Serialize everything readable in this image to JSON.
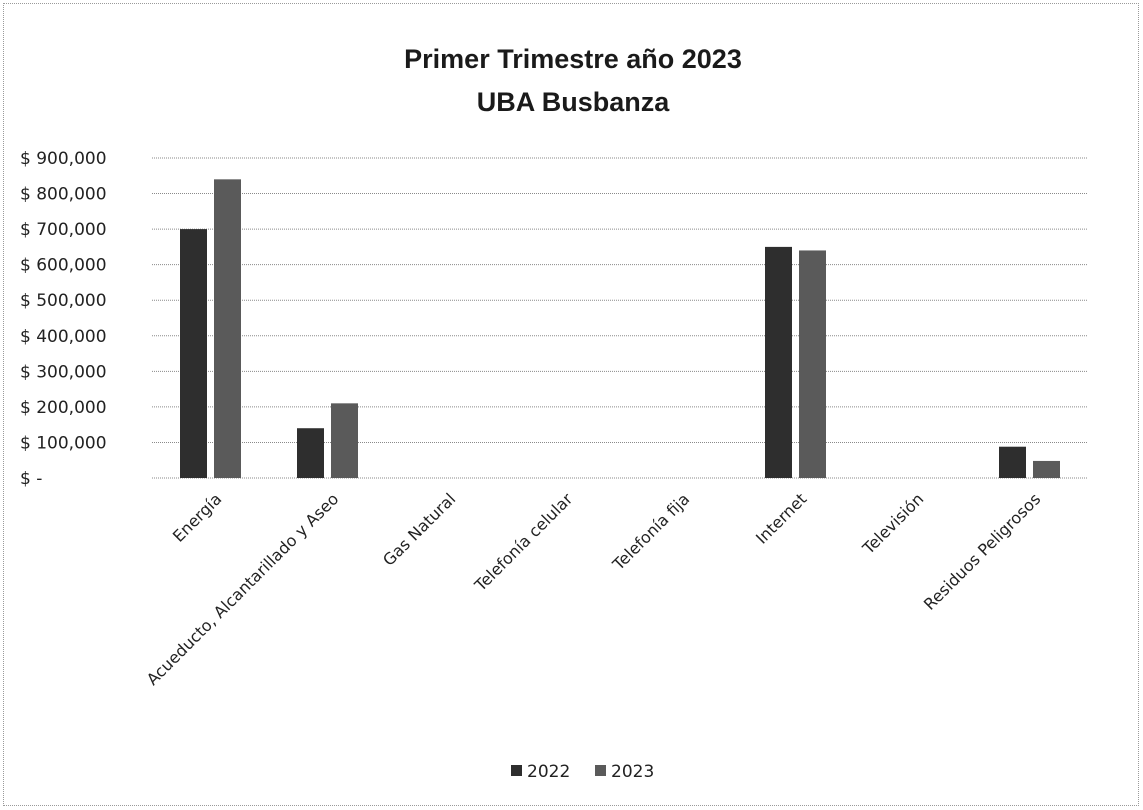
{
  "chart_data": {
    "type": "bar",
    "title": [
      "Primer Trimestre año 2023",
      "UBA Busbanza"
    ],
    "categories": [
      "Energía",
      "Acueducto, Alcantarillado y Aseo",
      "Gas Natural",
      "Telefonía celular",
      "Telefonía fija",
      "Internet",
      "Televisión",
      "Residuos Peligrosos"
    ],
    "series": [
      {
        "name": "2022",
        "color": "#2e2e2e",
        "values": [
          700000,
          140000,
          0,
          0,
          0,
          650000,
          0,
          88000
        ]
      },
      {
        "name": "2023",
        "color": "#5a5a5a",
        "values": [
          840000,
          210000,
          0,
          0,
          0,
          640000,
          0,
          48000
        ]
      }
    ],
    "ylim": [
      0,
      900000
    ],
    "yticks": [
      0,
      100000,
      200000,
      300000,
      400000,
      500000,
      600000,
      700000,
      800000,
      900000
    ],
    "ytick_labels": [
      "$ -",
      "$ 100,000",
      "$ 200,000",
      "$ 300,000",
      "$ 400,000",
      "$ 500,000",
      "$ 600,000",
      "$ 700,000",
      "$ 800,000",
      "$ 900,000"
    ],
    "grid": true,
    "legend_position": "bottom"
  }
}
